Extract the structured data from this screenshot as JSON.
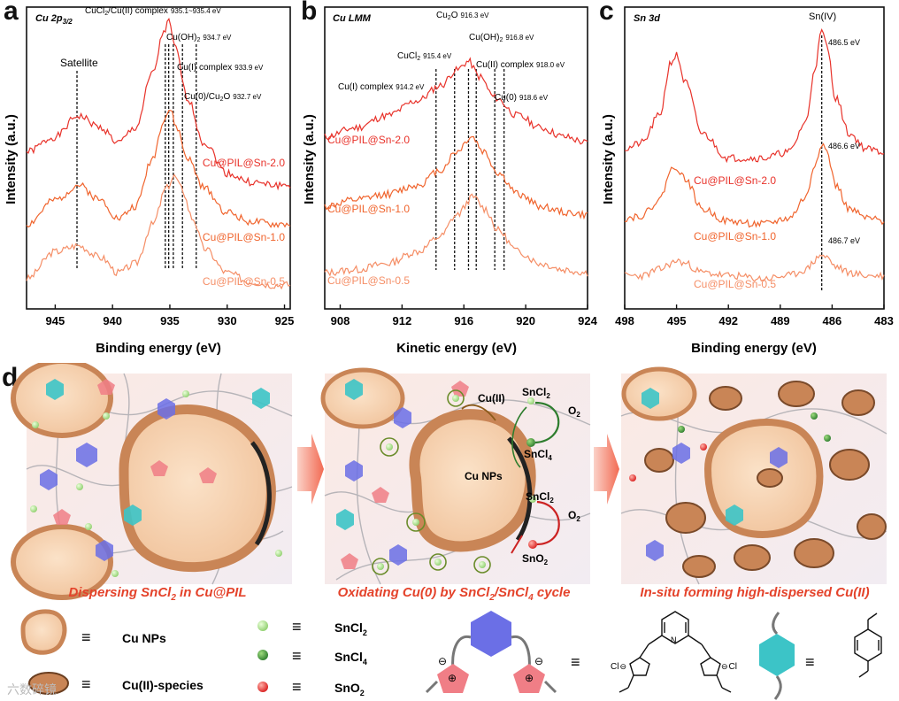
{
  "panels": {
    "a": {
      "letter": "a",
      "title": "Cu 2p",
      "title_sub": "3/2",
      "xlabel": "Binding energy (eV)",
      "ylabel": "Intensity (a.u.)",
      "ticks": [
        "945",
        "940",
        "935",
        "930",
        "925"
      ],
      "annotations": {
        "satellite": "Satellite",
        "cucl2_main": "CuCl",
        "cucl2_rest": "/Cu(II) complex",
        "cucl2_val": "935.1~935.4 eV",
        "cuoh2_main": "Cu(OH)",
        "cuoh2_val": "934.7 eV",
        "cui_main": "Cu(I) complex",
        "cui_val": "933.9 eV",
        "cu0_main": "Cu(0)/Cu",
        "cu0_o": "O",
        "cu0_val": "932.7 eV"
      },
      "series": [
        "Cu@PIL@Sn-2.0",
        "Cu@PIL@Sn-1.0",
        "Cu@PIL@Sn-0.5"
      ]
    },
    "b": {
      "letter": "b",
      "title": "Cu LMM",
      "xlabel": "Kinetic energy (eV)",
      "ylabel": "Intensity (a.u.)",
      "ticks": [
        "908",
        "912",
        "916",
        "920",
        "924"
      ],
      "annotations": {
        "cu2o_main": "Cu",
        "cu2o_o": "O",
        "cu2o_val": "916.3 eV",
        "cucl2_main": "CuCl",
        "cucl2_val": "915.4 eV",
        "cuoh2_main": "Cu(OH)",
        "cuoh2_val": "916.8 eV",
        "cuii_main": "Cu(II) complex",
        "cuii_val": "918.0 eV",
        "cui_main": "Cu(I) complex",
        "cui_val": "914.2 eV",
        "cu0_main": "Cu(0)",
        "cu0_val": "918.6 eV"
      },
      "series": [
        "Cu@PIL@Sn-2.0",
        "Cu@PIL@Sn-1.0",
        "Cu@PIL@Sn-0.5"
      ]
    },
    "c": {
      "letter": "c",
      "title": "Sn 3d",
      "xlabel": "Binding energy (eV)",
      "ylabel": "Intensity (a.u.)",
      "ticks": [
        "498",
        "495",
        "492",
        "489",
        "486",
        "483"
      ],
      "annotations": {
        "sniv": "Sn(IV)",
        "p1": "486.5 eV",
        "p2": "486.6 eV",
        "p3": "486.7 eV"
      },
      "series": [
        "Cu@PIL@Sn-2.0",
        "Cu@PIL@Sn-1.0",
        "Cu@PIL@Sn-0.5"
      ]
    },
    "d": {
      "letter": "d",
      "captions": {
        "c1_pre": "Dispersing SnCl",
        "c1_post": " in Cu@PIL",
        "c2_pre": "Oxidating Cu(0) by SnCl",
        "c2_mid": "/SnCl",
        "c2_post": " cycle",
        "c3": "In-situ forming high-dispersed Cu(II)"
      },
      "scheme": {
        "cuii": "Cu(II)",
        "sncl2": "SnCl",
        "sncl4": "SnCl",
        "o2": "O",
        "cunps": "Cu NPs",
        "sno2": "SnO"
      },
      "legend": {
        "cu_nps": "Cu NPs",
        "cuii_species": "Cu(II)-species",
        "sncl2": "SnCl",
        "sncl4": "SnCl",
        "sno2": "SnO",
        "equiv": "≡"
      },
      "watermark": "六数碎镜",
      "chem": {
        "cl": "Cl",
        "minus": "⊖",
        "plus": "⊕"
      }
    }
  },
  "digits": {
    "two": "2",
    "four": "4"
  },
  "colors": {
    "red": "#e8322a",
    "orange_red": "#f0642d",
    "orange": "#f58e66",
    "caption": "#e4432b",
    "cu_core": "#f7d3b0",
    "cu_shell": "#c98556",
    "pink": "#f07e86",
    "cyan": "#3cc4c7",
    "blue": "#6b6fe6"
  },
  "chart_data": [
    {
      "type": "line",
      "title": "Cu 2p3/2",
      "xlabel": "Binding energy (eV)",
      "ylabel": "Intensity (a.u.)",
      "xlim": [
        947.5,
        924.5
      ],
      "x_reversed": true,
      "series": [
        {
          "name": "Cu@PIL@Sn-2.0",
          "x": [
            947.5,
            945,
            943,
            941,
            939.5,
            938,
            936.5,
            935.5,
            935.1,
            934.5,
            933.5,
            932,
            930,
            928,
            926,
            924.5
          ],
          "y": [
            0.52,
            0.57,
            0.64,
            0.6,
            0.55,
            0.6,
            0.78,
            0.92,
            0.95,
            0.86,
            0.7,
            0.55,
            0.45,
            0.42,
            0.41,
            0.41
          ]
        },
        {
          "name": "Cu@PIL@Sn-1.0",
          "x": [
            947.5,
            945,
            943,
            941,
            939.5,
            938,
            936.5,
            935.5,
            935,
            934.4,
            933.5,
            932,
            930,
            928,
            926,
            924.5
          ],
          "y": [
            0.28,
            0.36,
            0.41,
            0.36,
            0.3,
            0.34,
            0.5,
            0.63,
            0.66,
            0.6,
            0.5,
            0.4,
            0.32,
            0.29,
            0.28,
            0.28
          ]
        },
        {
          "name": "Cu@PIL@Sn-0.5",
          "x": [
            947.5,
            945,
            943,
            941,
            939.5,
            938,
            936.5,
            935.3,
            934.6,
            934,
            933,
            932,
            930,
            928,
            926,
            924.5
          ],
          "y": [
            0.1,
            0.19,
            0.21,
            0.17,
            0.12,
            0.15,
            0.28,
            0.4,
            0.44,
            0.4,
            0.3,
            0.2,
            0.12,
            0.09,
            0.08,
            0.08
          ]
        }
      ],
      "annotation_lines_eV": [
        943.1,
        935.4,
        935.1,
        934.7,
        933.9,
        932.7
      ]
    },
    {
      "type": "line",
      "title": "Cu LMM",
      "xlabel": "Kinetic energy (eV)",
      "ylabel": "Intensity (a.u.)",
      "xlim": [
        907,
        924
      ],
      "series": [
        {
          "name": "Cu@PIL@Sn-2.0",
          "x": [
            907,
            909,
            911,
            913,
            914.5,
            915.5,
            916.3,
            917,
            918,
            919.5,
            921,
            922.5,
            924
          ],
          "y": [
            0.57,
            0.6,
            0.64,
            0.69,
            0.74,
            0.79,
            0.82,
            0.77,
            0.7,
            0.64,
            0.6,
            0.57,
            0.55
          ]
        },
        {
          "name": "Cu@PIL@Sn-1.0",
          "x": [
            907,
            909,
            911,
            913,
            914.5,
            915.5,
            916.5,
            917.3,
            918.2,
            919.5,
            921,
            922.5,
            924
          ],
          "y": [
            0.34,
            0.36,
            0.38,
            0.41,
            0.46,
            0.52,
            0.57,
            0.52,
            0.45,
            0.38,
            0.34,
            0.32,
            0.31
          ]
        },
        {
          "name": "Cu@PIL@Sn-0.5",
          "x": [
            907,
            909,
            911,
            913,
            914.5,
            915.5,
            916.6,
            917.4,
            918.2,
            919.5,
            921,
            922.5,
            924
          ],
          "y": [
            0.12,
            0.13,
            0.15,
            0.19,
            0.24,
            0.31,
            0.37,
            0.33,
            0.26,
            0.19,
            0.15,
            0.13,
            0.12
          ]
        }
      ],
      "annotation_lines_eV": [
        914.2,
        915.4,
        916.3,
        916.8,
        918.0,
        918.6
      ]
    },
    {
      "type": "line",
      "title": "Sn 3d",
      "xlabel": "Binding energy (eV)",
      "ylabel": "Intensity (a.u.)",
      "xlim": [
        498,
        483
      ],
      "x_reversed": true,
      "series": [
        {
          "name": "Cu@PIL@Sn-2.0",
          "x": [
            498,
            497,
            496,
            495.3,
            495,
            494.5,
            493.5,
            492,
            490,
            488.5,
            487.5,
            487,
            486.6,
            486.3,
            485.8,
            485,
            484,
            483
          ],
          "y": [
            0.53,
            0.55,
            0.64,
            0.82,
            0.84,
            0.75,
            0.58,
            0.5,
            0.5,
            0.52,
            0.62,
            0.8,
            0.92,
            0.87,
            0.7,
            0.58,
            0.53,
            0.52
          ]
        },
        {
          "name": "Cu@PIL@Sn-1.0",
          "x": [
            498,
            497,
            496,
            495.3,
            495,
            494.5,
            493.5,
            492,
            490,
            488.5,
            487.5,
            487,
            486.6,
            486.3,
            485.8,
            485,
            484,
            483
          ],
          "y": [
            0.3,
            0.31,
            0.36,
            0.46,
            0.47,
            0.43,
            0.33,
            0.29,
            0.28,
            0.3,
            0.37,
            0.48,
            0.55,
            0.52,
            0.41,
            0.33,
            0.3,
            0.29
          ]
        },
        {
          "name": "Cu@PIL@Sn-0.5",
          "x": [
            498,
            497,
            496,
            495.3,
            495,
            494.5,
            493.5,
            492,
            490,
            488.5,
            487.5,
            487,
            486.7,
            486.3,
            485.8,
            485,
            484,
            483
          ],
          "y": [
            0.11,
            0.11,
            0.13,
            0.15,
            0.16,
            0.15,
            0.12,
            0.11,
            0.1,
            0.11,
            0.13,
            0.16,
            0.18,
            0.17,
            0.14,
            0.12,
            0.11,
            0.11
          ]
        }
      ],
      "annotation_lines_eV": [
        486.6
      ]
    }
  ]
}
